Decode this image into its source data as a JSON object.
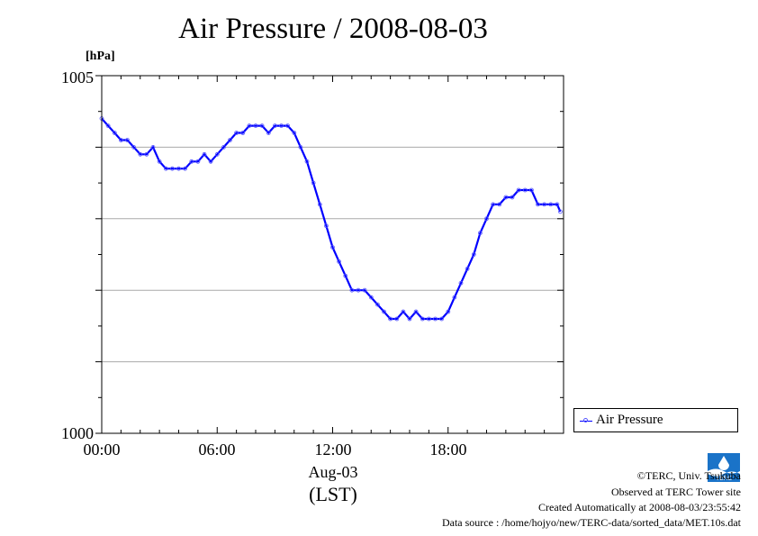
{
  "chart_data": {
    "type": "line",
    "title": "Air Pressure / 2008-08-03",
    "ylabel": "[hPa]",
    "ylim": [
      1000,
      1005
    ],
    "yticks": [
      "1005",
      "1000"
    ],
    "xlim": [
      "00:00",
      "24:00"
    ],
    "xticks": [
      "00:00",
      "06:00",
      "12:00",
      "18:00"
    ],
    "date_label": "Aug-03",
    "time_zone_label": "(LST)",
    "grid": true,
    "legend_position": "bottom-right",
    "series": [
      {
        "name": "Air Pressure",
        "color": "#0000ff",
        "x": [
          "00:00",
          "00:20",
          "00:40",
          "01:00",
          "01:20",
          "01:40",
          "02:00",
          "02:20",
          "02:40",
          "03:00",
          "03:20",
          "03:40",
          "04:00",
          "04:20",
          "04:40",
          "05:00",
          "05:20",
          "05:40",
          "06:00",
          "06:20",
          "06:40",
          "07:00",
          "07:20",
          "07:40",
          "08:00",
          "08:20",
          "08:40",
          "09:00",
          "09:20",
          "09:40",
          "10:00",
          "10:20",
          "10:40",
          "11:00",
          "11:20",
          "11:40",
          "12:00",
          "12:20",
          "12:40",
          "13:00",
          "13:20",
          "13:40",
          "14:00",
          "14:20",
          "14:40",
          "15:00",
          "15:20",
          "15:40",
          "16:00",
          "16:20",
          "16:40",
          "17:00",
          "17:20",
          "17:40",
          "18:00",
          "18:20",
          "18:40",
          "19:00",
          "19:20",
          "19:40",
          "20:00",
          "20:20",
          "20:40",
          "21:00",
          "21:20",
          "21:40",
          "22:00",
          "22:20",
          "22:40",
          "23:00",
          "23:20",
          "23:40",
          "23:50"
        ],
        "y": [
          1004.4,
          1004.3,
          1004.2,
          1004.1,
          1004.1,
          1004.0,
          1003.9,
          1003.9,
          1004.0,
          1003.8,
          1003.7,
          1003.7,
          1003.7,
          1003.7,
          1003.8,
          1003.8,
          1003.9,
          1003.8,
          1003.9,
          1004.0,
          1004.1,
          1004.2,
          1004.2,
          1004.3,
          1004.3,
          1004.3,
          1004.2,
          1004.3,
          1004.3,
          1004.3,
          1004.2,
          1004.0,
          1003.8,
          1003.5,
          1003.2,
          1002.9,
          1002.6,
          1002.4,
          1002.2,
          1002.0,
          1002.0,
          1002.0,
          1001.9,
          1001.8,
          1001.7,
          1001.6,
          1001.6,
          1001.7,
          1001.6,
          1001.7,
          1001.6,
          1001.6,
          1001.6,
          1001.6,
          1001.7,
          1001.9,
          1002.1,
          1002.3,
          1002.5,
          1002.8,
          1003.0,
          1003.2,
          1003.2,
          1003.3,
          1003.3,
          1003.4,
          1003.4,
          1003.4,
          1003.2,
          1003.2,
          1003.2,
          1003.2,
          1003.1
        ]
      }
    ]
  },
  "footer": {
    "copyright": "©TERC, Univ. Tsukuba",
    "observed": "Observed at TERC Tower site",
    "created": "Created Automatically at 2008-08-03/23:55:42",
    "source": "Data source : /home/hojyo/new/TERC-data/sorted_data/MET.10s.dat",
    "logo_text": "TERC"
  }
}
